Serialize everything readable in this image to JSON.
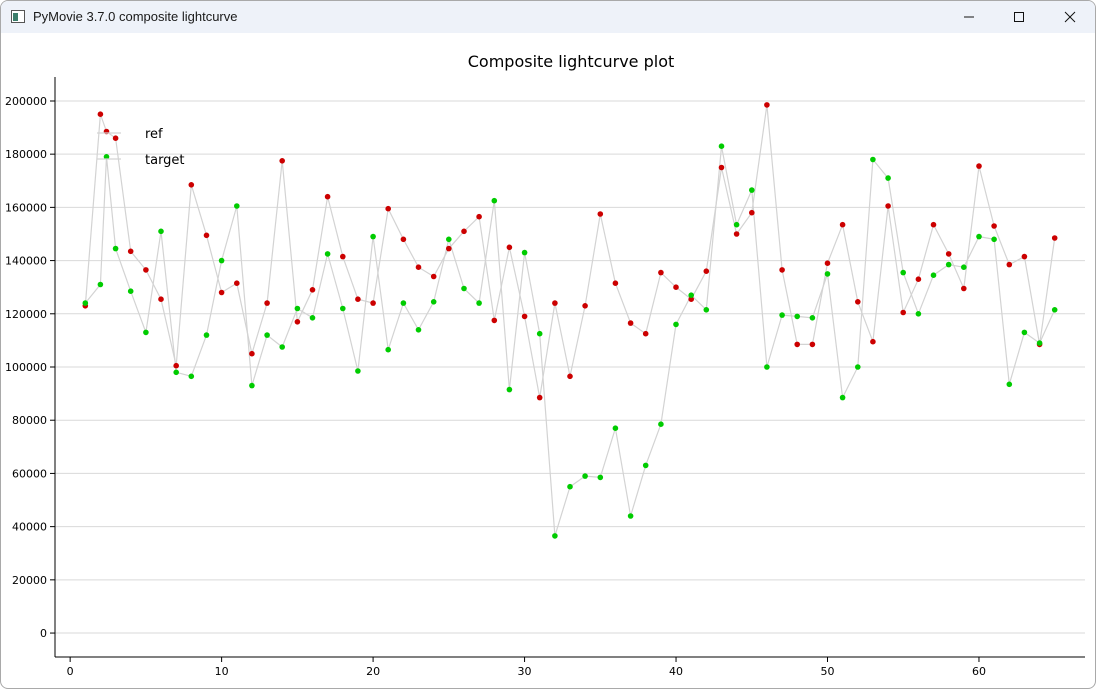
{
  "window": {
    "title": "PyMovie 3.7.0 composite lightcurve",
    "icons": {
      "app": "app-icon",
      "minimize": "minimize-icon",
      "maximize": "maximize-icon",
      "close": "close-icon"
    }
  },
  "chart_data": {
    "type": "scatter",
    "title": "Composite lightcurve plot",
    "xlabel": "",
    "ylabel": "",
    "xlim": [
      -1,
      67
    ],
    "ylim": [
      -9000,
      209000
    ],
    "xticks": [
      0,
      10,
      20,
      30,
      40,
      50,
      60
    ],
    "yticks": [
      0,
      20000,
      40000,
      60000,
      80000,
      100000,
      120000,
      140000,
      160000,
      180000,
      200000
    ],
    "grid": "horizontal",
    "legend_position": "top-left",
    "line_color": "#d3d3d3",
    "series": [
      {
        "name": "ref",
        "color": "#cc0000",
        "points": [
          [
            1,
            123000
          ],
          [
            2,
            195000
          ],
          [
            2.4,
            188500
          ],
          [
            3,
            186000
          ],
          [
            4,
            143500
          ],
          [
            5,
            136500
          ],
          [
            6,
            125500
          ],
          [
            7,
            100500
          ],
          [
            8,
            168500
          ],
          [
            9,
            149500
          ],
          [
            10,
            128000
          ],
          [
            11,
            131500
          ],
          [
            12,
            105000
          ],
          [
            13,
            124000
          ],
          [
            14,
            177500
          ],
          [
            15,
            117000
          ],
          [
            16,
            129000
          ],
          [
            17,
            164000
          ],
          [
            18,
            141500
          ],
          [
            19,
            125500
          ],
          [
            20,
            124000
          ],
          [
            21,
            159500
          ],
          [
            22,
            148000
          ],
          [
            23,
            137500
          ],
          [
            24,
            134000
          ],
          [
            25,
            144500
          ],
          [
            26,
            151000
          ],
          [
            27,
            156500
          ],
          [
            28,
            117500
          ],
          [
            29,
            145000
          ],
          [
            30,
            119000
          ],
          [
            31,
            88500
          ],
          [
            32,
            124000
          ],
          [
            33,
            96500
          ],
          [
            34,
            123000
          ],
          [
            35,
            157500
          ],
          [
            36,
            131500
          ],
          [
            37,
            116500
          ],
          [
            38,
            112500
          ],
          [
            39,
            135500
          ],
          [
            40,
            130000
          ],
          [
            41,
            125500
          ],
          [
            42,
            136000
          ],
          [
            43,
            175000
          ],
          [
            44,
            150000
          ],
          [
            45,
            158000
          ],
          [
            46,
            198500
          ],
          [
            47,
            136500
          ],
          [
            48,
            108500
          ],
          [
            49,
            108500
          ],
          [
            50,
            139000
          ],
          [
            51,
            153500
          ],
          [
            52,
            124500
          ],
          [
            53,
            109500
          ],
          [
            54,
            160500
          ],
          [
            55,
            120500
          ],
          [
            56,
            133000
          ],
          [
            57,
            153500
          ],
          [
            58,
            142500
          ],
          [
            59,
            129500
          ],
          [
            60,
            175500
          ],
          [
            61,
            153000
          ],
          [
            62,
            138500
          ],
          [
            63,
            141500
          ],
          [
            64,
            108500
          ],
          [
            65,
            148500
          ]
        ]
      },
      {
        "name": "target",
        "color": "#00cc00",
        "points": [
          [
            1,
            124000
          ],
          [
            2,
            131000
          ],
          [
            2.4,
            179000
          ],
          [
            3,
            144500
          ],
          [
            4,
            128500
          ],
          [
            5,
            113000
          ],
          [
            6,
            151000
          ],
          [
            7,
            98000
          ],
          [
            8,
            96500
          ],
          [
            9,
            112000
          ],
          [
            10,
            140000
          ],
          [
            11,
            160500
          ],
          [
            12,
            93000
          ],
          [
            13,
            112000
          ],
          [
            14,
            107500
          ],
          [
            15,
            122000
          ],
          [
            16,
            118500
          ],
          [
            17,
            142500
          ],
          [
            18,
            122000
          ],
          [
            19,
            98500
          ],
          [
            20,
            149000
          ],
          [
            21,
            106500
          ],
          [
            22,
            124000
          ],
          [
            23,
            114000
          ],
          [
            24,
            124500
          ],
          [
            25,
            148000
          ],
          [
            26,
            129500
          ],
          [
            27,
            124000
          ],
          [
            28,
            162500
          ],
          [
            29,
            91500
          ],
          [
            30,
            143000
          ],
          [
            31,
            112500
          ],
          [
            32,
            36500
          ],
          [
            33,
            55000
          ],
          [
            34,
            59000
          ],
          [
            35,
            58500
          ],
          [
            36,
            77000
          ],
          [
            37,
            44000
          ],
          [
            38,
            63000
          ],
          [
            39,
            78500
          ],
          [
            40,
            116000
          ],
          [
            41,
            127000
          ],
          [
            42,
            121500
          ],
          [
            43,
            183000
          ],
          [
            44,
            153500
          ],
          [
            45,
            166500
          ],
          [
            46,
            100000
          ],
          [
            47,
            119500
          ],
          [
            48,
            119000
          ],
          [
            49,
            118500
          ],
          [
            50,
            135000
          ],
          [
            51,
            88500
          ],
          [
            52,
            100000
          ],
          [
            53,
            178000
          ],
          [
            54,
            171000
          ],
          [
            55,
            135500
          ],
          [
            56,
            120000
          ],
          [
            57,
            134500
          ],
          [
            58,
            138500
          ],
          [
            59,
            137500
          ],
          [
            60,
            149000
          ],
          [
            61,
            148000
          ],
          [
            62,
            93500
          ],
          [
            63,
            113000
          ],
          [
            64,
            109000
          ],
          [
            65,
            121500
          ]
        ]
      }
    ]
  }
}
